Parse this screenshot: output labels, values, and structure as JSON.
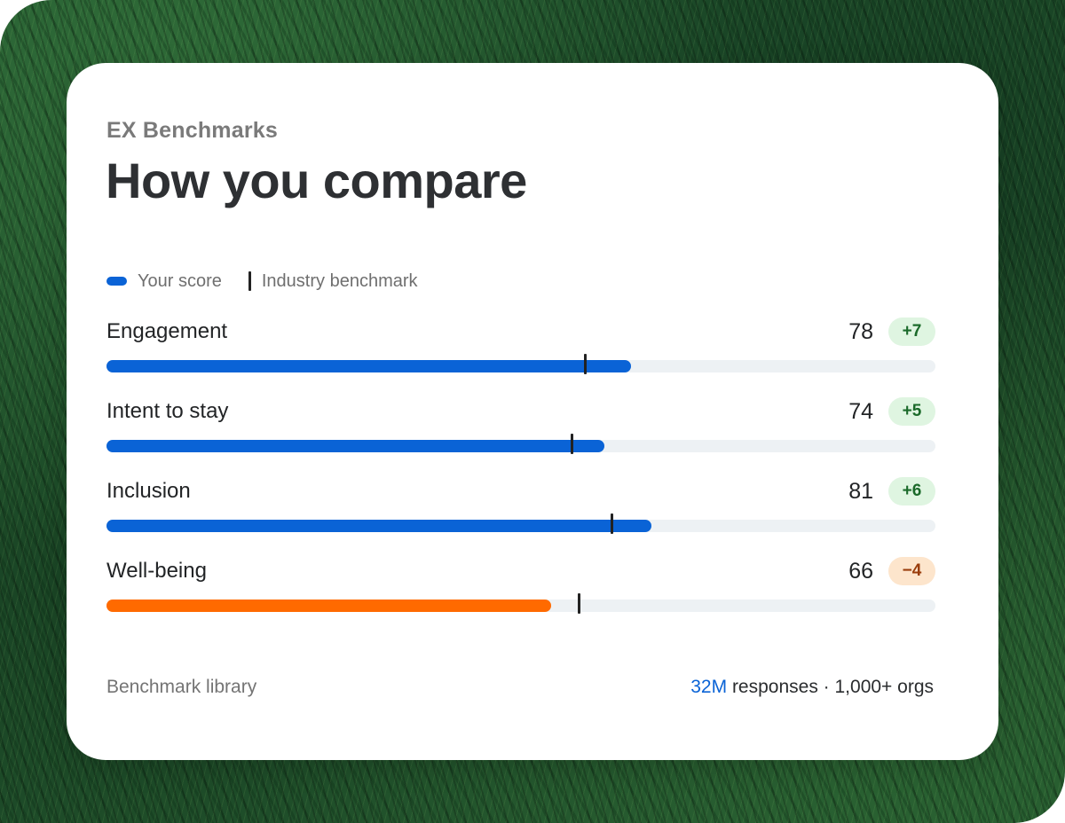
{
  "colors": {
    "primary_bar": "#0a63d6",
    "alert_bar": "#ff6a00",
    "benchmark_marker": "#222222",
    "highlight_text": "#0a63d6"
  },
  "card": {
    "eyebrow": "EX Benchmarks",
    "title": "How you compare"
  },
  "legend": {
    "your_score": "Your score",
    "industry_benchmark": "Industry benchmark"
  },
  "metrics": [
    {
      "label": "Engagement",
      "value": "78",
      "delta": "+7",
      "trend": "pos",
      "score_fraction": 0.633,
      "benchmark_fraction": 0.576
    },
    {
      "label": "Intent to stay",
      "value": "74",
      "delta": "+5",
      "trend": "pos",
      "score_fraction": 0.601,
      "benchmark_fraction": 0.56
    },
    {
      "label": "Inclusion",
      "value": "81",
      "delta": "+6",
      "trend": "pos",
      "score_fraction": 0.657,
      "benchmark_fraction": 0.608
    },
    {
      "label": "Well-being",
      "value": "66",
      "delta": "−4",
      "trend": "neg",
      "score_fraction": 0.536,
      "benchmark_fraction": 0.568
    }
  ],
  "footer": {
    "left": "Benchmark library",
    "highlight": "32M",
    "rest": " responses · 1,000+ orgs"
  }
}
